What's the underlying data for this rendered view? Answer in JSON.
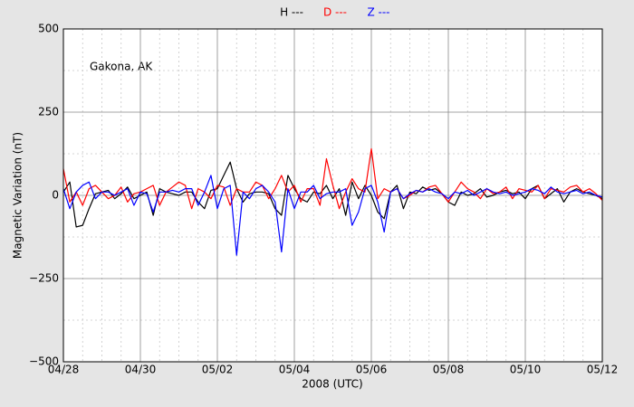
{
  "chart_data": {
    "type": "line",
    "annotation": "Gakona, AK",
    "x_label": "2008 (UTC)",
    "y_label": "Magnetic Variation (nT)",
    "xlim": [
      0,
      336
    ],
    "xticks": [
      {
        "value": 0,
        "label": "04/28"
      },
      {
        "value": 48,
        "label": "04/30"
      },
      {
        "value": 96,
        "label": "05/02"
      },
      {
        "value": 144,
        "label": "05/04"
      },
      {
        "value": 192,
        "label": "05/06"
      },
      {
        "value": 240,
        "label": "05/08"
      },
      {
        "value": 288,
        "label": "05/10"
      },
      {
        "value": 336,
        "label": "05/12"
      }
    ],
    "xminorticks": [
      12,
      24,
      36,
      60,
      72,
      84,
      108,
      120,
      132,
      156,
      168,
      180,
      204,
      216,
      228,
      252,
      264,
      276,
      300,
      312,
      324
    ],
    "ylim": [
      -500,
      500
    ],
    "yticks": [
      {
        "value": -500,
        "label": "−500"
      },
      {
        "value": -250,
        "label": "−250"
      },
      0,
      250,
      500
    ],
    "yminorticks": [
      -375,
      -125,
      125,
      375
    ],
    "grid": true,
    "legend": "top",
    "x": [
      0,
      4,
      8,
      12,
      16,
      20,
      24,
      28,
      32,
      36,
      40,
      44,
      48,
      52,
      56,
      60,
      64,
      68,
      72,
      76,
      80,
      84,
      88,
      92,
      96,
      100,
      104,
      108,
      112,
      116,
      120,
      124,
      128,
      132,
      136,
      140,
      144,
      148,
      152,
      156,
      160,
      164,
      168,
      172,
      176,
      180,
      184,
      188,
      192,
      196,
      200,
      204,
      208,
      212,
      216,
      220,
      224,
      228,
      232,
      236,
      240,
      244,
      248,
      252,
      256,
      260,
      264,
      268,
      272,
      276,
      280,
      284,
      288,
      292,
      296,
      300,
      304,
      308,
      312,
      316,
      320,
      324,
      328,
      332,
      336
    ],
    "series": [
      {
        "name": "H ---",
        "color": "#000000",
        "values": [
          10,
          40,
          -95,
          -90,
          -40,
          5,
          10,
          15,
          -10,
          5,
          25,
          -10,
          0,
          10,
          -60,
          20,
          10,
          5,
          0,
          10,
          10,
          -20,
          -40,
          15,
          20,
          60,
          100,
          20,
          -20,
          5,
          10,
          10,
          5,
          -40,
          -60,
          60,
          20,
          -10,
          -20,
          10,
          5,
          30,
          -10,
          20,
          -60,
          40,
          -10,
          30,
          0,
          -50,
          -70,
          10,
          30,
          -40,
          10,
          5,
          25,
          15,
          20,
          5,
          -20,
          -30,
          10,
          0,
          5,
          20,
          -5,
          0,
          10,
          15,
          5,
          10,
          -10,
          20,
          30,
          -10,
          5,
          20,
          -20,
          10,
          20,
          10,
          5,
          0,
          -10
        ]
      },
      {
        "name": "D ---",
        "color": "#ff0000",
        "values": [
          80,
          -20,
          10,
          -30,
          20,
          30,
          10,
          -10,
          0,
          25,
          -20,
          5,
          10,
          20,
          30,
          -30,
          10,
          25,
          40,
          30,
          -40,
          20,
          10,
          -10,
          30,
          25,
          -30,
          20,
          10,
          10,
          40,
          30,
          -10,
          20,
          60,
          10,
          30,
          -20,
          20,
          20,
          -30,
          110,
          30,
          -40,
          10,
          50,
          20,
          10,
          140,
          -10,
          20,
          10,
          20,
          -10,
          0,
          15,
          10,
          25,
          30,
          5,
          -20,
          10,
          40,
          20,
          10,
          -10,
          20,
          5,
          10,
          25,
          -10,
          20,
          15,
          10,
          30,
          -10,
          20,
          15,
          10,
          25,
          30,
          10,
          20,
          5,
          -15
        ]
      },
      {
        "name": "Z ---",
        "color": "#0000ff",
        "values": [
          20,
          -40,
          10,
          30,
          40,
          -10,
          10,
          10,
          0,
          10,
          20,
          -30,
          10,
          5,
          -50,
          10,
          10,
          15,
          10,
          20,
          20,
          -30,
          10,
          60,
          -40,
          20,
          30,
          -180,
          10,
          -10,
          20,
          30,
          10,
          -20,
          -170,
          20,
          -40,
          10,
          10,
          30,
          -10,
          5,
          10,
          10,
          20,
          -90,
          -50,
          20,
          30,
          -20,
          -110,
          10,
          20,
          -10,
          5,
          15,
          10,
          20,
          10,
          5,
          -10,
          10,
          5,
          15,
          0,
          10,
          20,
          10,
          5,
          10,
          0,
          5,
          10,
          20,
          15,
          5,
          25,
          10,
          5,
          10,
          15,
          5,
          10,
          0,
          -5
        ]
      }
    ]
  }
}
